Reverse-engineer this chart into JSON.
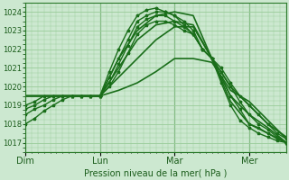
{
  "xlabel": "Pression niveau de la mer( hPa )",
  "bg_color": "#cce8d0",
  "plot_bg_color": "#cce8d0",
  "grid_color": "#99cc99",
  "line_color": "#1a6e1a",
  "ylim": [
    1016.5,
    1024.5
  ],
  "yticks": [
    1017,
    1018,
    1019,
    1020,
    1021,
    1022,
    1023,
    1024
  ],
  "day_labels": [
    "Dim",
    "Lun",
    "Mar",
    "Mer"
  ],
  "day_positions": [
    0,
    48,
    96,
    144
  ],
  "xlim": [
    0,
    168
  ],
  "series": [
    {
      "x": [
        0,
        12,
        24,
        36,
        48,
        60,
        72,
        84,
        96,
        108,
        120,
        132,
        144,
        156,
        168
      ],
      "y": [
        1019.5,
        1019.5,
        1019.5,
        1019.5,
        1019.5,
        1019.8,
        1020.2,
        1020.8,
        1021.5,
        1021.5,
        1021.3,
        1019.8,
        1019.2,
        1018.2,
        1017.2
      ],
      "with_markers": false,
      "linewidth": 1.2
    },
    {
      "x": [
        0,
        12,
        24,
        36,
        48,
        60,
        72,
        84,
        96,
        108,
        120,
        132,
        144,
        156,
        168
      ],
      "y": [
        1019.5,
        1019.5,
        1019.5,
        1019.5,
        1019.5,
        1020.5,
        1021.5,
        1022.5,
        1023.2,
        1023.2,
        1021.5,
        1020.0,
        1019.0,
        1018.0,
        1017.3
      ],
      "with_markers": false,
      "linewidth": 1.2
    },
    {
      "x": [
        0,
        12,
        24,
        36,
        48,
        60,
        72,
        84,
        96,
        108,
        120,
        132,
        144,
        156,
        168
      ],
      "y": [
        1019.5,
        1019.5,
        1019.5,
        1019.5,
        1019.5,
        1021.0,
        1022.5,
        1023.3,
        1023.5,
        1023.3,
        1021.5,
        1019.5,
        1018.5,
        1017.8,
        1017.0
      ],
      "with_markers": false,
      "linewidth": 1.2
    },
    {
      "x": [
        0,
        12,
        24,
        36,
        48,
        60,
        72,
        84,
        96,
        108,
        120,
        132,
        144,
        156,
        168
      ],
      "y": [
        1019.5,
        1019.5,
        1019.5,
        1019.5,
        1019.5,
        1021.5,
        1023.0,
        1023.8,
        1024.0,
        1023.8,
        1021.5,
        1019.2,
        1018.0,
        1017.5,
        1017.0
      ],
      "with_markers": false,
      "linewidth": 1.2
    },
    {
      "x": [
        0,
        6,
        12,
        18,
        24,
        30,
        36,
        42,
        48,
        54,
        60,
        66,
        72,
        78,
        84,
        90,
        96,
        102,
        108,
        114,
        120,
        126,
        132,
        138,
        144,
        150,
        156,
        162,
        168
      ],
      "y": [
        1019.0,
        1019.2,
        1019.5,
        1019.5,
        1019.5,
        1019.5,
        1019.5,
        1019.5,
        1019.5,
        1020.0,
        1020.8,
        1021.8,
        1022.8,
        1023.3,
        1023.5,
        1023.5,
        1023.3,
        1023.0,
        1022.8,
        1022.0,
        1021.5,
        1021.0,
        1020.2,
        1019.5,
        1019.0,
        1018.5,
        1018.0,
        1017.5,
        1017.2
      ],
      "with_markers": true,
      "linewidth": 1.0
    },
    {
      "x": [
        0,
        6,
        12,
        18,
        24,
        30,
        36,
        42,
        48,
        54,
        60,
        66,
        72,
        78,
        84,
        90,
        96,
        102,
        108,
        114,
        120,
        126,
        132,
        138,
        144,
        150,
        156,
        162,
        168
      ],
      "y": [
        1018.8,
        1019.0,
        1019.3,
        1019.5,
        1019.5,
        1019.5,
        1019.5,
        1019.5,
        1019.5,
        1020.2,
        1021.2,
        1022.2,
        1023.2,
        1023.6,
        1023.8,
        1023.8,
        1023.5,
        1023.2,
        1022.8,
        1022.0,
        1021.5,
        1020.8,
        1020.0,
        1019.2,
        1018.5,
        1018.0,
        1017.7,
        1017.3,
        1017.0
      ],
      "with_markers": true,
      "linewidth": 1.0
    },
    {
      "x": [
        0,
        6,
        12,
        18,
        24,
        30,
        36,
        42,
        48,
        54,
        60,
        66,
        72,
        78,
        84,
        90,
        96,
        102,
        108,
        114,
        120,
        126,
        132,
        138,
        144,
        150,
        156,
        162,
        168
      ],
      "y": [
        1018.5,
        1018.8,
        1019.0,
        1019.3,
        1019.5,
        1019.5,
        1019.5,
        1019.5,
        1019.5,
        1020.5,
        1021.5,
        1022.5,
        1023.5,
        1023.8,
        1024.0,
        1024.0,
        1023.8,
        1023.5,
        1023.0,
        1022.0,
        1021.5,
        1020.5,
        1019.5,
        1018.8,
        1018.0,
        1017.8,
        1017.5,
        1017.2,
        1017.0
      ],
      "with_markers": true,
      "linewidth": 1.0
    },
    {
      "x": [
        0,
        6,
        12,
        18,
        24,
        30,
        36,
        42,
        48,
        54,
        60,
        66,
        72,
        78,
        84,
        90,
        96,
        102,
        108,
        114,
        120,
        126,
        132,
        138,
        144,
        150,
        156,
        162,
        168
      ],
      "y": [
        1018.0,
        1018.3,
        1018.7,
        1019.0,
        1019.3,
        1019.5,
        1019.5,
        1019.5,
        1019.5,
        1020.8,
        1022.0,
        1023.0,
        1023.8,
        1024.1,
        1024.2,
        1024.0,
        1023.8,
        1023.3,
        1022.8,
        1022.0,
        1021.5,
        1020.2,
        1019.0,
        1018.2,
        1017.8,
        1017.5,
        1017.3,
        1017.1,
        1017.0
      ],
      "with_markers": true,
      "linewidth": 1.0
    }
  ]
}
